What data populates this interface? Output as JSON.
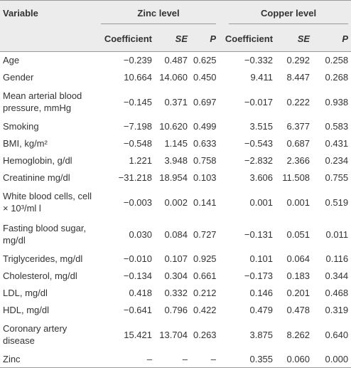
{
  "table": {
    "headers": [
      "Variable",
      "Zinc level",
      "Copper level"
    ],
    "subheaders": [
      "Coefficient",
      "SE",
      "P",
      "Coefficient",
      "SE",
      "P"
    ],
    "rows": [
      [
        "Age",
        "−0.239",
        "0.487",
        "0.625",
        "−0.332",
        "0.292",
        "0.258"
      ],
      [
        "Gender",
        "10.664",
        "14.060",
        "0.450",
        "9.411",
        "8.447",
        "0.268"
      ],
      [
        "Mean arterial blood pressure, mmHg",
        "−0.145",
        "0.371",
        "0.697",
        "−0.017",
        "0.222",
        "0.938"
      ],
      [
        "Smoking",
        "−7.198",
        "10.620",
        "0.499",
        "3.515",
        "6.377",
        "0.583"
      ],
      [
        "BMI, kg/m²",
        "−0.548",
        "1.145",
        "0.633",
        "−0.543",
        "0.687",
        "0.431"
      ],
      [
        "Hemoglobin, g/dl",
        "1.221",
        "3.948",
        "0.758",
        "−2.832",
        "2.366",
        "0.234"
      ],
      [
        "Creatinine mg/dl",
        "−31.218",
        "18.954",
        "0.103",
        "3.606",
        "11.508",
        "0.755"
      ],
      [
        "White blood cells, cell × 10³/ml l",
        "−0.003",
        "0.002",
        "0.141",
        "0.001",
        "0.001",
        "0.519"
      ],
      [
        "Fasting blood sugar, mg/dl",
        "0.030",
        "0.084",
        "0.727",
        "−0.131",
        "0.051",
        "0.011"
      ],
      [
        "Triglycerides, mg/dl",
        "−0.010",
        "0.107",
        "0.925",
        "0.101",
        "0.064",
        "0.116"
      ],
      [
        "Cholesterol, mg/dl",
        "−0.134",
        "0.304",
        "0.661",
        "−0.173",
        "0.183",
        "0.344"
      ],
      [
        "LDL, mg/dl",
        "0.418",
        "0.332",
        "0.212",
        "0.146",
        "0.201",
        "0.468"
      ],
      [
        "HDL, mg/dl",
        "−0.641",
        "0.796",
        "0.422",
        "0.479",
        "0.478",
        "0.319"
      ],
      [
        "Coronary artery disease",
        "15.421",
        "13.704",
        "0.263",
        "3.875",
        "8.262",
        "0.640"
      ],
      [
        "Zinc",
        "–",
        "–",
        "–",
        "0.355",
        "0.060",
        "0.000"
      ]
    ]
  }
}
